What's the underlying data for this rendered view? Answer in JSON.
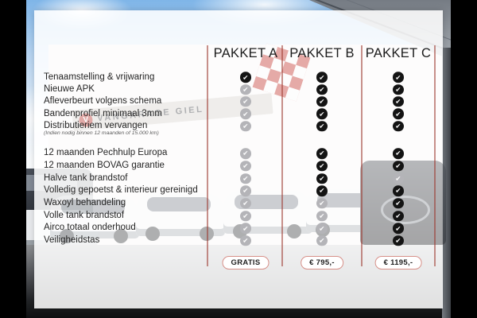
{
  "table": {
    "columns": [
      "PAKKET A",
      "PAKKET B",
      "PAKKET C"
    ],
    "rows": [
      {
        "label": "Tenaamstelling & vrijwaring",
        "included": [
          true,
          true,
          true
        ],
        "group": 1
      },
      {
        "label": "Nieuwe APK",
        "included": [
          false,
          true,
          true
        ],
        "group": 1
      },
      {
        "label": "Afleverbeurt volgens schema",
        "included": [
          false,
          true,
          true
        ],
        "group": 1
      },
      {
        "label": "Bandenprofiel minimaal 3mm",
        "included": [
          false,
          true,
          true
        ],
        "group": 1
      },
      {
        "label": "Distributieriem vervangen",
        "note": "(Indien nodig binnen 12 maanden of 15.000 km)",
        "included": [
          false,
          true,
          true
        ],
        "group": 1
      },
      {
        "label": "12 maanden Pechhulp Europa",
        "included": [
          false,
          true,
          true
        ],
        "group": 2
      },
      {
        "label": "12 maanden BOVAG garantie",
        "included": [
          false,
          true,
          true
        ],
        "group": 2
      },
      {
        "label": "Halve tank brandstof",
        "included": [
          false,
          true,
          false
        ],
        "group": 2
      },
      {
        "label": "Volledig gepoetst & interieur gereinigd",
        "included": [
          false,
          true,
          true
        ],
        "group": 2
      },
      {
        "label": "Waxoyl behandeling",
        "included": [
          false,
          false,
          true
        ],
        "group": 2
      },
      {
        "label": "Volle tank brandstof",
        "included": [
          false,
          false,
          true
        ],
        "group": 2
      },
      {
        "label": "Airco totaal onderhoud",
        "included": [
          false,
          false,
          true
        ],
        "group": 2
      },
      {
        "label": "Veiligheidstas",
        "included": [
          false,
          false,
          true
        ],
        "group": 2
      }
    ],
    "prices": [
      "GRATIS",
      "€ 795,-",
      "€ 1195,-"
    ]
  },
  "background": {
    "signage_text": "VANGARAGE GIEL",
    "signage_logo_letter": "V"
  },
  "icons": {
    "check": "✔"
  },
  "colors": {
    "check_included": "#141414",
    "check_excluded": "#b4b4b8",
    "column_divider": "rgba(154,52,44,0.55)",
    "price_pill_border": "#d79089",
    "panel": "rgba(255,255,255,0.87)"
  }
}
